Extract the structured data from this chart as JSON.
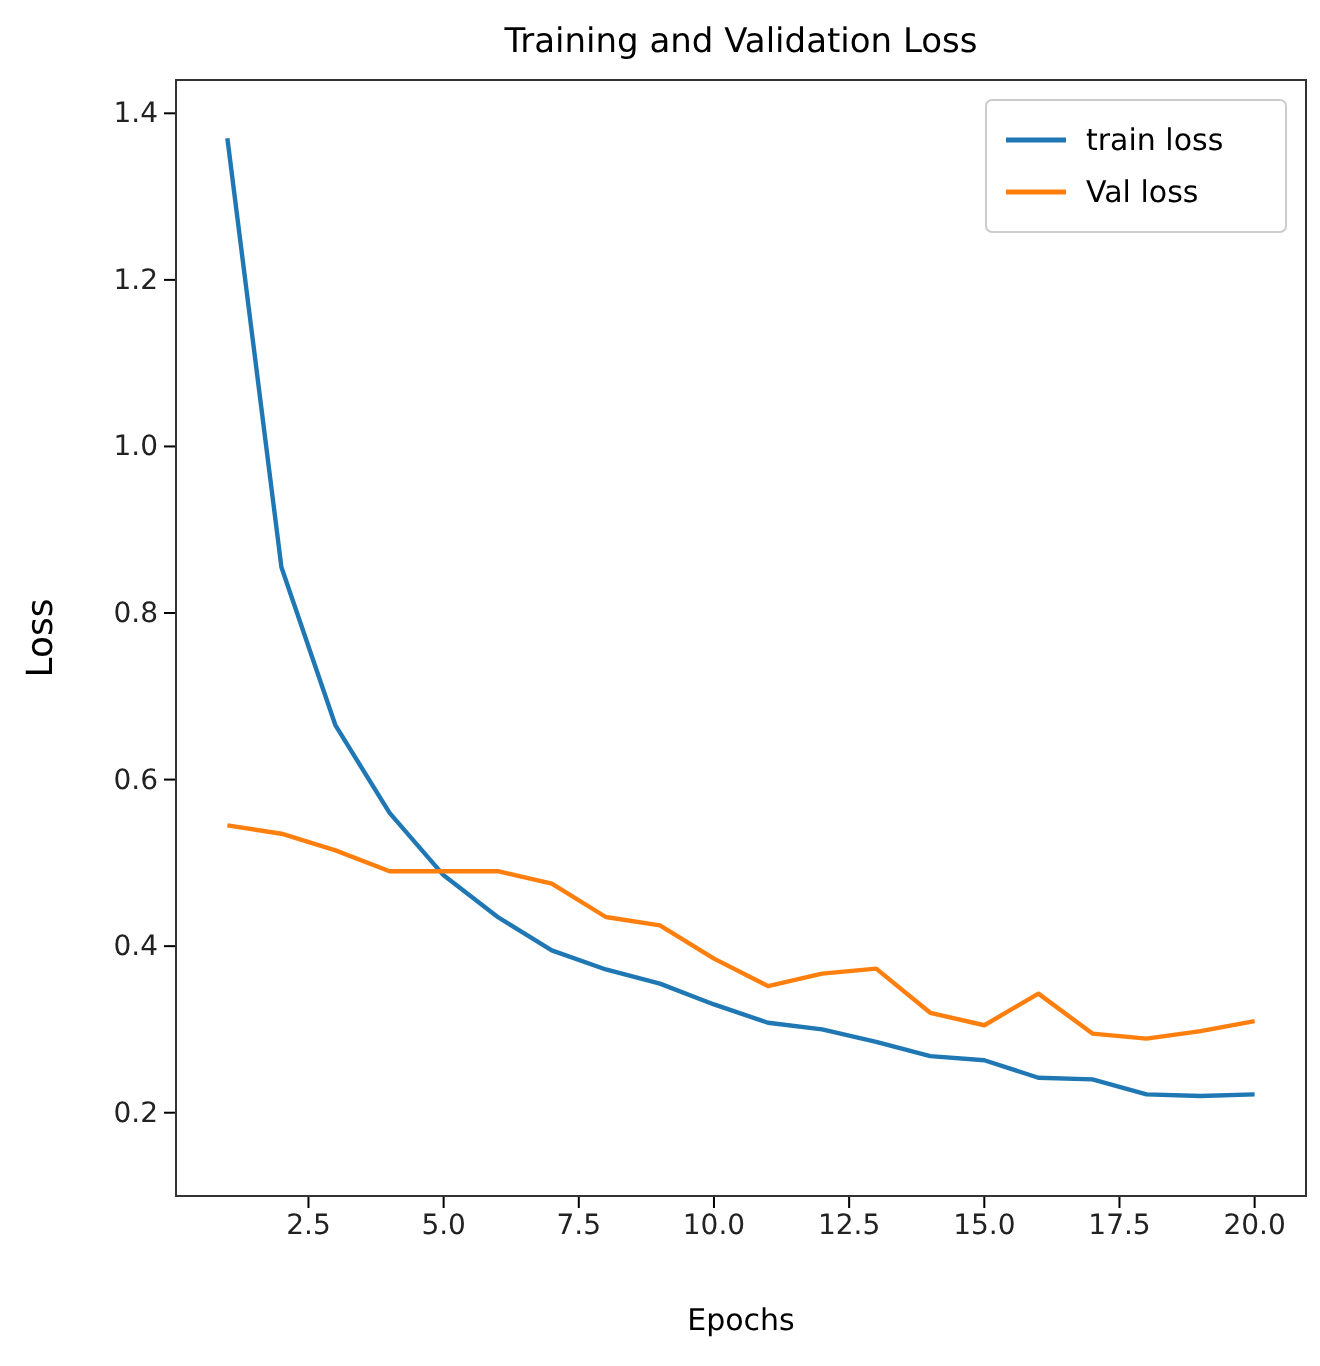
{
  "chart_data": {
    "type": "line",
    "title": "Training and Validation Loss",
    "xlabel": "Epochs",
    "ylabel": "Loss",
    "x": [
      1,
      2,
      3,
      4,
      5,
      6,
      7,
      8,
      9,
      10,
      11,
      12,
      13,
      14,
      15,
      16,
      17,
      18,
      19,
      20
    ],
    "series": [
      {
        "name": "train loss",
        "color": "#1f77b4",
        "values": [
          1.37,
          0.855,
          0.665,
          0.56,
          0.485,
          0.435,
          0.395,
          0.372,
          0.355,
          0.33,
          0.308,
          0.3,
          0.285,
          0.268,
          0.263,
          0.242,
          0.24,
          0.222,
          0.22,
          0.222
        ]
      },
      {
        "name": "Val loss",
        "color": "#ff7f0e",
        "values": [
          0.545,
          0.535,
          0.515,
          0.49,
          0.49,
          0.49,
          0.475,
          0.435,
          0.425,
          0.385,
          0.352,
          0.367,
          0.373,
          0.32,
          0.305,
          0.343,
          0.295,
          0.289,
          0.298,
          0.31
        ]
      }
    ],
    "xlim": [
      0.05,
      20.95
    ],
    "xticks": [
      2.5,
      {
        "value": 5,
        "label": "5.0"
      },
      7.5,
      {
        "value": 10,
        "label": "10.0"
      },
      12.5,
      {
        "value": 15,
        "label": "15.0"
      },
      17.5,
      {
        "value": 20,
        "label": "20.0"
      }
    ],
    "ylim": [
      0.1,
      1.44
    ],
    "yticks": [
      0.2,
      0.4,
      0.6,
      0.8,
      {
        "value": 1,
        "label": "1.0"
      },
      1.2,
      1.4
    ],
    "legend": "top right"
  }
}
